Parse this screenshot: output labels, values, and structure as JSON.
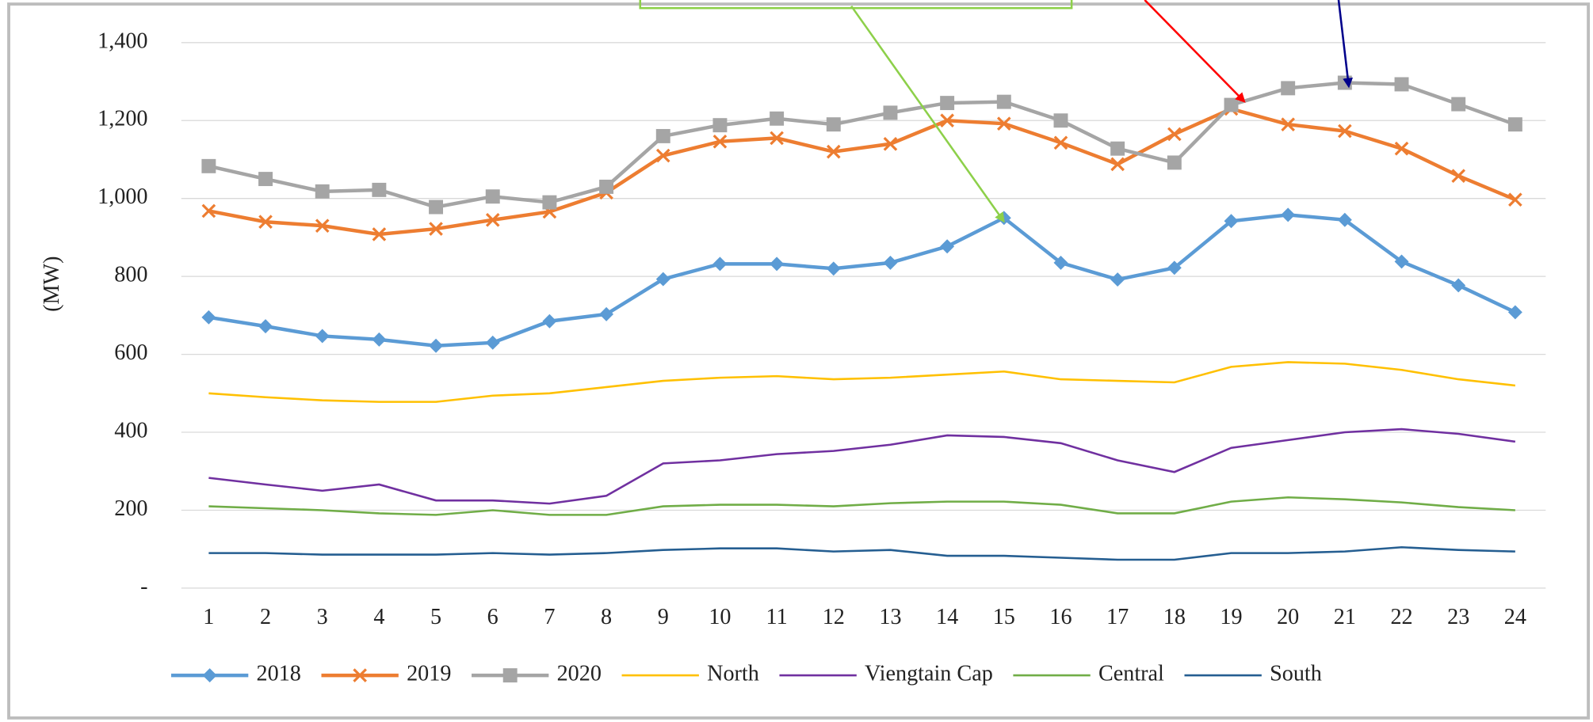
{
  "chart_data": {
    "type": "line",
    "y_label": "(MW)",
    "categories": [
      "1",
      "2",
      "3",
      "4",
      "5",
      "6",
      "7",
      "8",
      "9",
      "10",
      "11",
      "12",
      "13",
      "14",
      "15",
      "16",
      "17",
      "18",
      "19",
      "20",
      "21",
      "22",
      "23",
      "24"
    ],
    "ylim": [
      0,
      1400
    ],
    "yticks": [
      {
        "value": 0,
        "label": "-"
      },
      200,
      400,
      600,
      800,
      {
        "value": 1000,
        "label": "1,000"
      },
      {
        "value": 1200,
        "label": "1,200"
      },
      {
        "value": 1400,
        "label": "1,400"
      }
    ],
    "grid": true,
    "legend": "bottom",
    "series": [
      {
        "name": "2018",
        "color": "#5b9bd5",
        "marker": "diamond",
        "values": [
          695,
          672,
          647,
          638,
          622,
          630,
          685,
          703,
          793,
          832,
          832,
          820,
          835,
          877,
          950,
          835,
          792,
          822,
          942,
          958,
          945,
          838,
          777,
          708
        ]
      },
      {
        "name": "2019",
        "color": "#ed7d31",
        "marker": "x",
        "values": [
          968,
          940,
          930,
          908,
          922,
          945,
          966,
          1015,
          1110,
          1146,
          1155,
          1120,
          1140,
          1200,
          1192,
          1143,
          1088,
          1165,
          1230,
          1190,
          1173,
          1128,
          1058,
          997
        ]
      },
      {
        "name": "2020",
        "color": "#a5a5a5",
        "marker": "square",
        "values": [
          1083,
          1050,
          1018,
          1022,
          978,
          1005,
          990,
          1030,
          1160,
          1188,
          1205,
          1190,
          1220,
          1245,
          1248,
          1200,
          1128,
          1092,
          1240,
          1283,
          1297,
          1293,
          1242,
          1190
        ]
      },
      {
        "name": "North",
        "color": "#ffc000",
        "values": [
          500,
          490,
          482,
          478,
          478,
          494,
          500,
          516,
          532,
          540,
          544,
          536,
          540,
          548,
          556,
          536,
          532,
          528,
          568,
          580,
          576,
          560,
          536,
          520
        ]
      },
      {
        "name": "Viengtain Cap",
        "color": "#7030a0",
        "values": [
          283,
          266,
          250,
          266,
          225,
          225,
          217,
          237,
          320,
          328,
          344,
          352,
          368,
          392,
          388,
          372,
          328,
          298,
          360,
          380,
          400,
          408,
          396,
          376
        ]
      },
      {
        "name": "Central",
        "color": "#70ad47",
        "values": [
          210,
          205,
          200,
          192,
          188,
          200,
          188,
          188,
          210,
          214,
          214,
          210,
          218,
          222,
          222,
          214,
          192,
          192,
          222,
          233,
          228,
          220,
          208,
          200
        ]
      },
      {
        "name": "South",
        "color": "#255e91",
        "values": [
          90,
          90,
          86,
          86,
          86,
          90,
          86,
          90,
          98,
          102,
          102,
          94,
          98,
          83,
          83,
          78,
          73,
          73,
          90,
          90,
          94,
          105,
          98,
          94
        ]
      }
    ]
  }
}
